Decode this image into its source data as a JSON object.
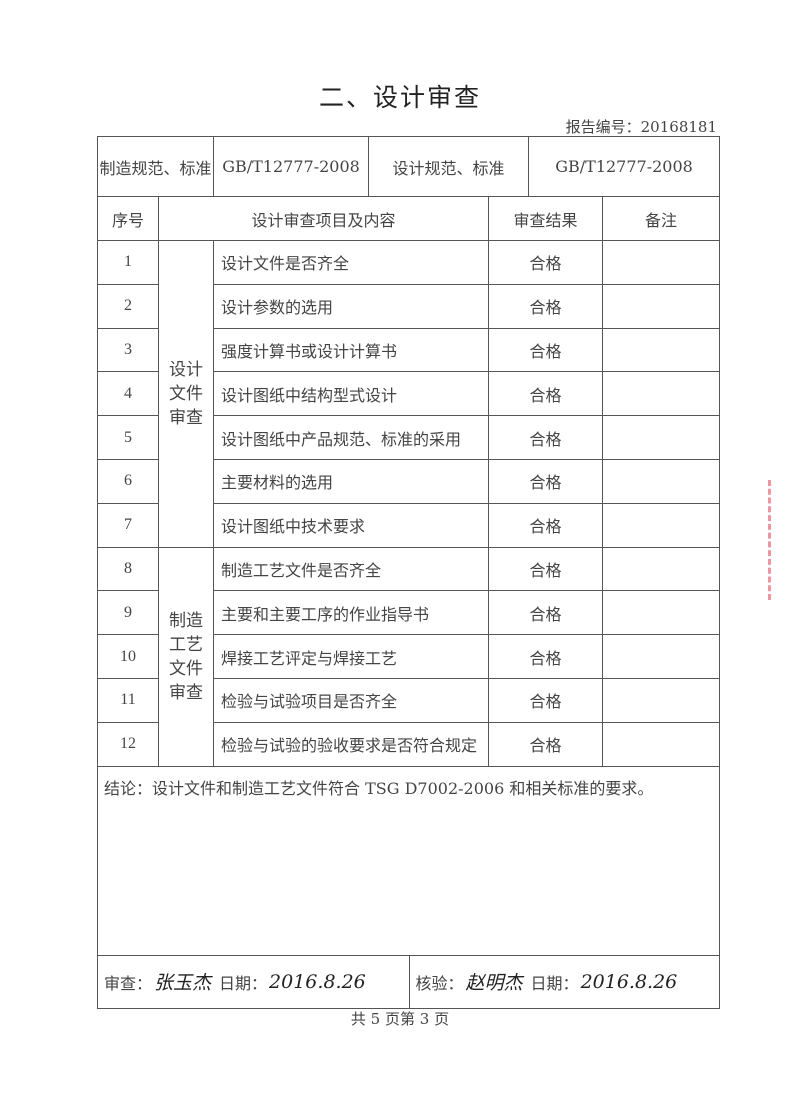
{
  "title": "二、设计审查",
  "report_number": "报告编号：20168181",
  "standards": {
    "manufacture_label": "制造规范、标准",
    "manufacture_value": "GB/T12777-2008",
    "design_label": "设计规范、标准",
    "design_value": "GB/T12777-2008"
  },
  "headers": {
    "seq": "序号",
    "item": "设计审查项目及内容",
    "result": "审查结果",
    "remarks": "备注"
  },
  "groups": [
    "设计\n文件\n审查",
    "制造\n工艺\n文件\n审查"
  ],
  "rows": [
    {
      "no": "1",
      "item": "设计文件是否齐全",
      "result": "合格",
      "remarks": ""
    },
    {
      "no": "2",
      "item": "设计参数的选用",
      "result": "合格",
      "remarks": ""
    },
    {
      "no": "3",
      "item": "强度计算书或设计计算书",
      "result": "合格",
      "remarks": ""
    },
    {
      "no": "4",
      "item": "设计图纸中结构型式设计",
      "result": "合格",
      "remarks": ""
    },
    {
      "no": "5",
      "item": "设计图纸中产品规范、标准的采用",
      "result": "合格",
      "remarks": ""
    },
    {
      "no": "6",
      "item": "主要材料的选用",
      "result": "合格",
      "remarks": ""
    },
    {
      "no": "7",
      "item": "设计图纸中技术要求",
      "result": "合格",
      "remarks": ""
    },
    {
      "no": "8",
      "item": "制造工艺文件是否齐全",
      "result": "合格",
      "remarks": ""
    },
    {
      "no": "9",
      "item": "主要和主要工序的作业指导书",
      "result": "合格",
      "remarks": ""
    },
    {
      "no": "10",
      "item": "焊接工艺评定与焊接工艺",
      "result": "合格",
      "remarks": ""
    },
    {
      "no": "11",
      "item": "检验与试验项目是否齐全",
      "result": "合格",
      "remarks": ""
    },
    {
      "no": "12",
      "item": "检验与试验的验收要求是否符合规定",
      "result": "合格",
      "remarks": ""
    }
  ],
  "conclusion": "结论：设计文件和制造工艺文件符合 TSG D7002-2006 和相关标准的要求。",
  "signoff": {
    "review_label": "审查：",
    "review_signature": "张玉杰",
    "review_date_label": "日期：",
    "review_date": "2016.8.26",
    "verify_label": "核验：",
    "verify_signature": "赵明杰",
    "verify_date_label": "日期：",
    "verify_date": "2016.8.26"
  },
  "footer": "共 5 页第 3 页",
  "colors": {
    "text": "#444444",
    "border": "#555555",
    "stamp": "#e36a7d"
  }
}
